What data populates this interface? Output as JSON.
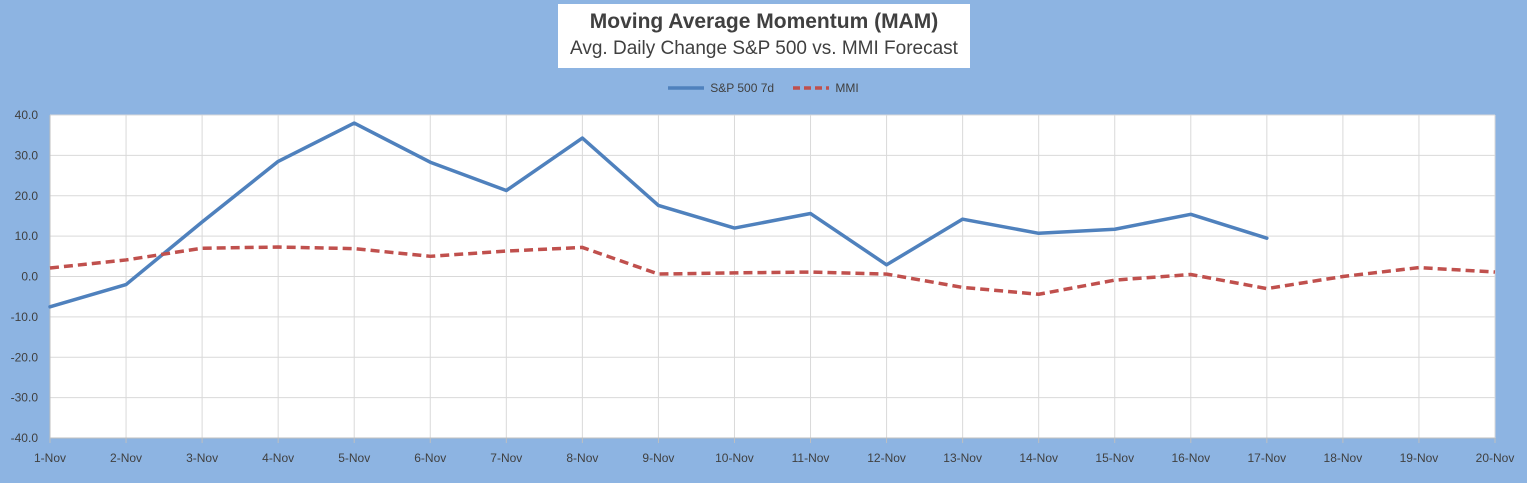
{
  "title": "Moving Average Momentum (MAM)",
  "subtitle": "Avg. Daily Change S&P 500 vs. MMI Forecast",
  "chart_data": {
    "type": "line",
    "categories": [
      "1-Nov",
      "2-Nov",
      "3-Nov",
      "4-Nov",
      "5-Nov",
      "6-Nov",
      "7-Nov",
      "8-Nov",
      "9-Nov",
      "10-Nov",
      "11-Nov",
      "12-Nov",
      "13-Nov",
      "14-Nov",
      "15-Nov",
      "16-Nov",
      "17-Nov",
      "18-Nov",
      "19-Nov",
      "20-Nov"
    ],
    "ylim": [
      -40,
      40
    ],
    "yticks": [
      "-40.0",
      "-30.0",
      "-20.0",
      "-10.0",
      "0.0",
      "10.0",
      "20.0",
      "30.0",
      "40.0"
    ],
    "grid": true,
    "legend_position": "top",
    "series": [
      {
        "name": "S&P 500 7d",
        "color": "#4f81bd",
        "style": "solid",
        "values": [
          -7.5,
          -2.0,
          13.5,
          28.5,
          38.0,
          28.3,
          21.3,
          34.3,
          17.6,
          12.0,
          15.6,
          2.9,
          14.2,
          10.7,
          11.7,
          15.4,
          9.5,
          null,
          null,
          null
        ]
      },
      {
        "name": "MMI",
        "color": "#c0504d",
        "style": "dashed",
        "values": [
          2.1,
          4.1,
          7.0,
          7.3,
          6.9,
          5.0,
          6.3,
          7.2,
          0.6,
          0.9,
          1.1,
          0.6,
          -2.7,
          -4.4,
          -0.9,
          0.5,
          -3.0,
          0.0,
          2.2,
          1.1
        ]
      }
    ]
  }
}
